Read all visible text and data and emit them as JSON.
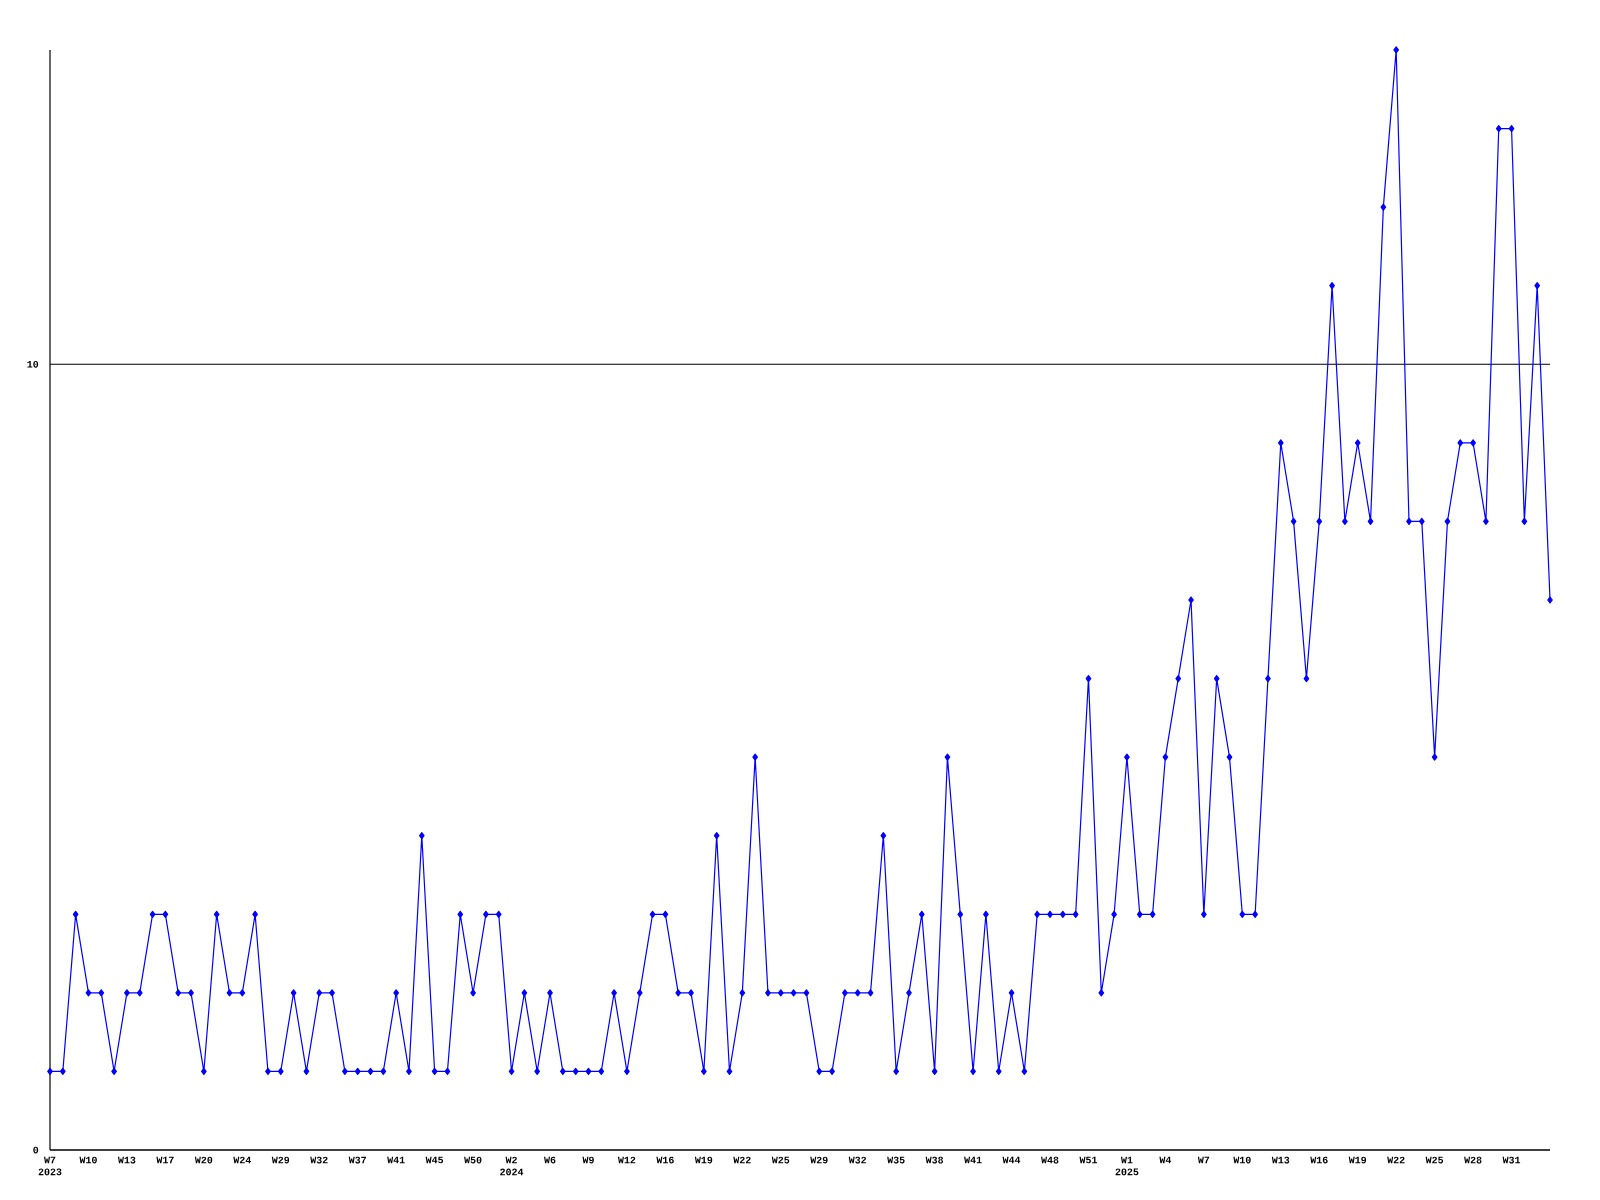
{
  "chart_data": {
    "type": "line",
    "categories": [
      "W7 2023",
      null,
      null,
      "W10",
      null,
      null,
      "W13",
      null,
      null,
      "W17",
      null,
      null,
      "W20",
      null,
      null,
      "W24",
      null,
      null,
      "W29",
      null,
      null,
      "W32",
      null,
      null,
      "W37",
      null,
      null,
      "W41",
      null,
      null,
      "W45",
      null,
      null,
      "W50",
      null,
      null,
      "W2 2024",
      null,
      null,
      "W6",
      null,
      null,
      "W9",
      null,
      null,
      "W12",
      null,
      null,
      "W16",
      null,
      null,
      "W19",
      null,
      null,
      "W22",
      null,
      null,
      "W25",
      null,
      null,
      "W29",
      null,
      null,
      "W32",
      null,
      null,
      "W35",
      null,
      null,
      "W38",
      null,
      null,
      "W41",
      null,
      null,
      "W44",
      null,
      null,
      "W48",
      null,
      null,
      "W51",
      null,
      null,
      "W1 2025",
      null,
      null,
      "W4",
      null,
      null,
      "W7",
      null,
      null,
      "W10",
      null,
      null,
      "W13",
      null,
      null,
      "W16",
      null,
      null,
      "W19",
      null,
      null,
      "W22",
      null,
      null,
      "W25",
      null,
      null,
      "W28",
      null,
      null,
      "W31",
      null,
      null,
      null
    ],
    "values": [
      1,
      1,
      3,
      2,
      2,
      1,
      2,
      2,
      3,
      3,
      2,
      2,
      1,
      3,
      2,
      2,
      3,
      1,
      1,
      2,
      1,
      2,
      2,
      1,
      1,
      1,
      1,
      2,
      1,
      4,
      1,
      1,
      3,
      2,
      3,
      3,
      1,
      2,
      1,
      2,
      1,
      1,
      1,
      1,
      2,
      1,
      2,
      3,
      3,
      2,
      2,
      1,
      4,
      1,
      2,
      5,
      2,
      2,
      2,
      2,
      1,
      1,
      2,
      2,
      2,
      4,
      1,
      2,
      3,
      1,
      5,
      3,
      1,
      3,
      1,
      2,
      1,
      3,
      3,
      3,
      3,
      6,
      2,
      3,
      5,
      3,
      3,
      5,
      6,
      7,
      3,
      6,
      5,
      3,
      3,
      6,
      9,
      8,
      6,
      8,
      11,
      8,
      9,
      8,
      12,
      14,
      8,
      8,
      5,
      8,
      9,
      9,
      8,
      13,
      13,
      8,
      11,
      7
    ],
    "color": "#0000ff",
    "marker": "diamond",
    "line_style": "solid",
    "ylim": [
      0,
      14
    ],
    "yticks": [
      0,
      10
    ],
    "grid": "y"
  }
}
